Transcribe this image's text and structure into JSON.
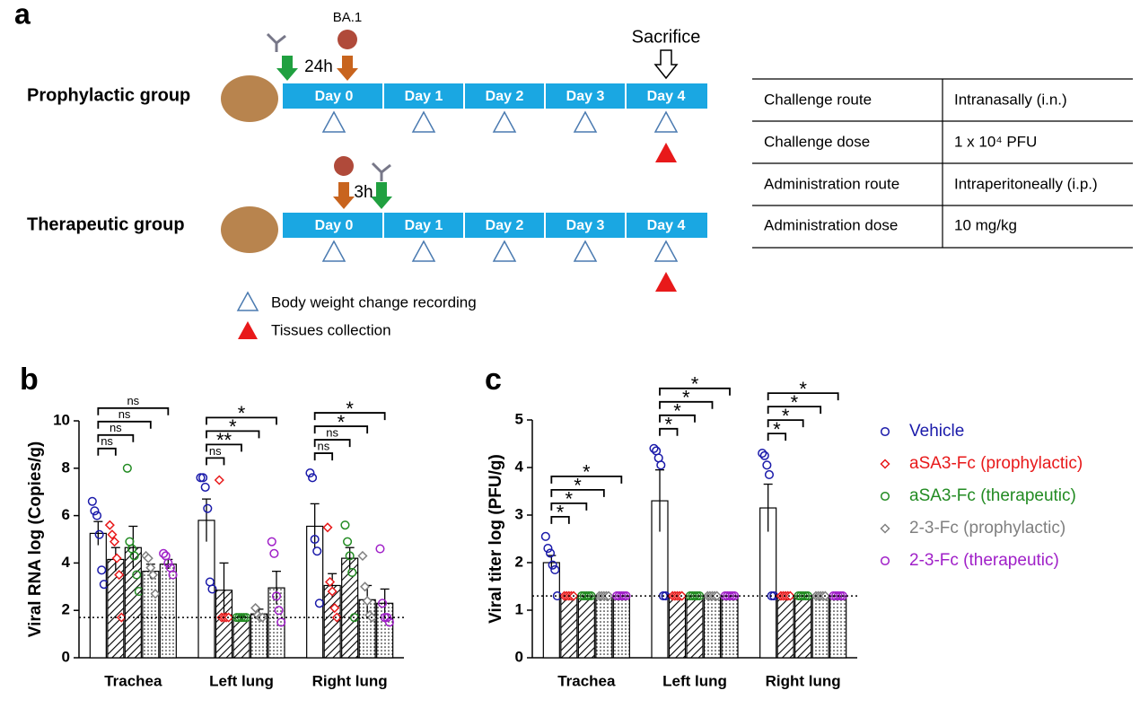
{
  "panel_a": {
    "label": "a",
    "virus": "BA.1",
    "sacrifice": "Sacrifice",
    "groups": [
      {
        "name": "Prophylactic group",
        "interval": "24h"
      },
      {
        "name": "Therapeutic group",
        "interval": "3h"
      }
    ],
    "days": [
      "Day 0",
      "Day 1",
      "Day 2",
      "Day 3",
      "Day 4"
    ],
    "legend": [
      "Body weight change recording",
      "Tissues collection"
    ],
    "table": [
      [
        "Challenge route",
        "Intranasally (i.n.)"
      ],
      [
        "Challenge dose",
        "1 x 10⁴ PFU"
      ],
      [
        "Administration route",
        "Intraperitoneally (i.p.)"
      ],
      [
        "Administration dose",
        "10 mg/kg"
      ]
    ]
  },
  "chart_data": [
    {
      "type": "bar",
      "panel": "b",
      "ylabel": "Viral RNA log (Copies/g)",
      "categories": [
        "Trachea",
        "Left lung",
        "Right lung"
      ],
      "ylim": [
        0,
        10
      ],
      "yticks": [
        0,
        2,
        4,
        6,
        8,
        10
      ],
      "detection_limit": 1.7,
      "legend": false,
      "significance": [
        [
          "ns",
          "ns",
          "ns",
          "ns"
        ],
        [
          "ns",
          "**",
          "*",
          "*"
        ],
        [
          "ns",
          "ns",
          "*",
          "*"
        ]
      ],
      "series": [
        {
          "color": "#1a1aaa",
          "marker": "circle",
          "pattern": "none",
          "values": [
            5.25,
            5.8,
            5.55
          ],
          "errors": [
            0.5,
            0.9,
            0.95
          ],
          "points": [
            [
              6.6,
              6.2,
              6.0,
              5.2,
              3.7,
              3.1
            ],
            [
              7.6,
              7.6,
              7.2,
              6.3,
              3.2,
              2.9
            ],
            [
              7.8,
              7.6,
              5.0,
              4.5,
              2.3
            ]
          ]
        },
        {
          "color": "#e8191a",
          "marker": "diamond",
          "pattern": "hatch",
          "values": [
            4.15,
            2.85,
            3.05
          ],
          "errors": [
            0.5,
            1.15,
            0.5
          ],
          "points": [
            [
              5.6,
              5.2,
              4.9,
              4.2,
              3.5,
              1.7
            ],
            [
              7.5,
              1.7,
              1.7,
              1.7,
              1.7
            ],
            [
              5.5,
              3.2,
              2.8,
              2.1,
              1.7
            ]
          ]
        },
        {
          "color": "#228b22",
          "marker": "circle",
          "pattern": "hatch",
          "values": [
            4.65,
            1.7,
            4.2
          ],
          "errors": [
            0.9,
            0.05,
            0.45
          ],
          "points": [
            [
              8.0,
              4.9,
              4.6,
              4.3,
              3.5,
              2.8
            ],
            [
              1.7,
              1.7,
              1.7,
              1.7,
              1.7
            ],
            [
              5.6,
              4.9,
              4.3,
              3.6,
              1.7
            ]
          ]
        },
        {
          "color": "#808080",
          "marker": "diamond",
          "pattern": "dots",
          "values": [
            3.65,
            1.85,
            2.45
          ],
          "errors": [
            0.3,
            0.2,
            0.6
          ],
          "points": [
            [
              4.3,
              4.2,
              3.8,
              3.5,
              2.7
            ],
            [
              2.1,
              1.8,
              1.7,
              1.7
            ],
            [
              4.3,
              3.0,
              2.4,
              1.8,
              1.7
            ]
          ]
        },
        {
          "color": "#a020c8",
          "marker": "circle",
          "pattern": "dots",
          "values": [
            3.95,
            2.95,
            2.3
          ],
          "errors": [
            0.2,
            0.7,
            0.6
          ],
          "points": [
            [
              4.4,
              4.3,
              4.0,
              3.8,
              3.5
            ],
            [
              4.9,
              4.4,
              2.6,
              2.0,
              1.5
            ],
            [
              4.6,
              2.3,
              1.7,
              1.7,
              1.5
            ]
          ]
        }
      ]
    },
    {
      "type": "bar",
      "panel": "c",
      "ylabel": "Viral titer log (PFU/g)",
      "categories": [
        "Trachea",
        "Left lung",
        "Right lung"
      ],
      "ylim": [
        0,
        5
      ],
      "yticks": [
        0,
        1,
        2,
        3,
        4,
        5
      ],
      "detection_limit": 1.3,
      "legend": true,
      "significance": [
        [
          "*",
          "*",
          "*",
          "*"
        ],
        [
          "*",
          "*",
          "*",
          "*"
        ],
        [
          "*",
          "*",
          "*",
          "*"
        ]
      ],
      "series": [
        {
          "name": "Vehicle",
          "color": "#1a1aaa",
          "marker": "circle",
          "pattern": "none",
          "values": [
            2.0,
            3.3,
            3.15
          ],
          "errors": [
            0.15,
            0.65,
            0.5
          ],
          "points": [
            [
              2.55,
              2.3,
              2.2,
              1.95,
              1.85,
              1.3
            ],
            [
              4.4,
              4.35,
              4.2,
              4.05,
              1.3,
              1.3
            ],
            [
              4.3,
              4.25,
              4.05,
              3.85,
              1.3,
              1.3
            ]
          ]
        },
        {
          "name": "aSA3-Fc (prophylactic)",
          "color": "#e8191a",
          "marker": "diamond",
          "pattern": "hatch",
          "values": [
            1.3,
            1.3,
            1.3
          ],
          "errors": [
            0,
            0,
            0
          ],
          "points": [
            [
              1.3,
              1.3,
              1.3,
              1.3,
              1.3
            ],
            [
              1.3,
              1.3,
              1.3,
              1.3,
              1.3
            ],
            [
              1.3,
              1.3,
              1.3,
              1.3,
              1.3
            ]
          ]
        },
        {
          "name": "aSA3-Fc (therapeutic)",
          "color": "#228b22",
          "marker": "circle",
          "pattern": "hatch",
          "values": [
            1.3,
            1.3,
            1.3
          ],
          "errors": [
            0,
            0,
            0
          ],
          "points": [
            [
              1.3,
              1.3,
              1.3,
              1.3,
              1.3
            ],
            [
              1.3,
              1.3,
              1.3,
              1.3,
              1.3
            ],
            [
              1.3,
              1.3,
              1.3,
              1.3,
              1.3
            ]
          ]
        },
        {
          "name": "2-3-Fc (prophylactic)",
          "color": "#808080",
          "marker": "diamond",
          "pattern": "dots",
          "values": [
            1.3,
            1.3,
            1.3
          ],
          "errors": [
            0,
            0,
            0
          ],
          "points": [
            [
              1.3,
              1.3,
              1.3,
              1.3,
              1.3
            ],
            [
              1.3,
              1.3,
              1.3,
              1.3,
              1.3
            ],
            [
              1.3,
              1.3,
              1.3,
              1.3,
              1.3
            ]
          ]
        },
        {
          "name": "2-3-Fc (therapeutic)",
          "color": "#a020c8",
          "marker": "circle",
          "pattern": "dots",
          "values": [
            1.3,
            1.3,
            1.3
          ],
          "errors": [
            0,
            0,
            0
          ],
          "points": [
            [
              1.3,
              1.3,
              1.3,
              1.3,
              1.3
            ],
            [
              1.3,
              1.3,
              1.3,
              1.3,
              1.3
            ],
            [
              1.3,
              1.3,
              1.3,
              1.3,
              1.3
            ]
          ]
        }
      ]
    }
  ]
}
